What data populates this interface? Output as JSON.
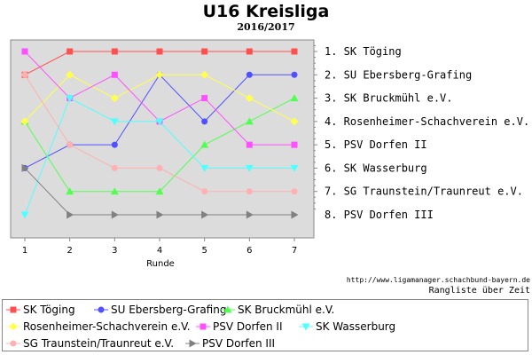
{
  "chart_data": {
    "type": "line",
    "title": "U16 Kreisliga",
    "subtitle": "2016/2017",
    "xlabel": "Runde",
    "x": [
      1,
      2,
      3,
      4,
      5,
      6,
      7
    ],
    "y_inverted": true,
    "ylim": [
      1,
      8
    ],
    "rank_labels": [
      "1. SK Töging",
      "2. SU Ebersberg-Grafing",
      "3. SK Bruckmühl e.V.",
      "4. Rosenheimer-Schachverein e.V.",
      "5. PSV Dorfen II",
      "6. SK Wasserburg",
      "7. SG Traunstein/Traunreut e.V.",
      "8. PSV Dorfen III"
    ],
    "grid": false,
    "legend_position": "bottom",
    "series": [
      {
        "name": "SK Töging",
        "color": "#ff5050",
        "marker": "square",
        "values": [
          2,
          1,
          1,
          1,
          1,
          1,
          1
        ]
      },
      {
        "name": "SU Ebersberg-Grafing",
        "color": "#5050ff",
        "marker": "circle",
        "values": [
          6,
          5,
          5,
          2,
          4,
          2,
          2
        ]
      },
      {
        "name": "SK Bruckmühl e.V.",
        "color": "#50ff50",
        "marker": "triangle-up",
        "values": [
          4,
          7,
          7,
          7,
          5,
          4,
          3
        ]
      },
      {
        "name": "Rosenheimer-Schachverein e.V.",
        "color": "#ffff50",
        "marker": "diamond",
        "values": [
          4,
          2,
          3,
          2,
          2,
          3,
          4
        ]
      },
      {
        "name": "PSV Dorfen II",
        "color": "#ff50ff",
        "marker": "square",
        "values": [
          1,
          3,
          2,
          4,
          3,
          5,
          5
        ]
      },
      {
        "name": "SK Wasserburg",
        "color": "#50ffff",
        "marker": "triangle-down",
        "values": [
          8,
          3,
          4,
          4,
          6,
          6,
          6
        ]
      },
      {
        "name": "SG Traunstein/Traunreut e.V.",
        "color": "#ffb0b0",
        "marker": "circle",
        "values": [
          2,
          5,
          6,
          6,
          7,
          7,
          7
        ]
      },
      {
        "name": "PSV Dorfen III",
        "color": "#808080",
        "marker": "triangle-right",
        "values": [
          6,
          8,
          8,
          8,
          8,
          8,
          8
        ]
      }
    ]
  },
  "footer": {
    "source": "http://www.ligamanager.schachbund-bayern.de",
    "caption": "Rangliste über Zeit"
  }
}
